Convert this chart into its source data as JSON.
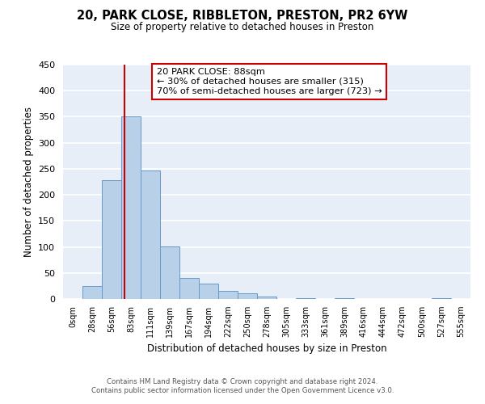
{
  "title": "20, PARK CLOSE, RIBBLETON, PRESTON, PR2 6YW",
  "subtitle": "Size of property relative to detached houses in Preston",
  "xlabel": "Distribution of detached houses by size in Preston",
  "ylabel": "Number of detached properties",
  "bar_color": "#b8d0e8",
  "bar_edge_color": "#6699cc",
  "background_color": "#e8eef7",
  "grid_color": "white",
  "bin_labels": [
    "0sqm",
    "28sqm",
    "56sqm",
    "83sqm",
    "111sqm",
    "139sqm",
    "167sqm",
    "194sqm",
    "222sqm",
    "250sqm",
    "278sqm",
    "305sqm",
    "333sqm",
    "361sqm",
    "389sqm",
    "416sqm",
    "444sqm",
    "472sqm",
    "500sqm",
    "527sqm",
    "555sqm"
  ],
  "bar_heights": [
    0,
    25,
    228,
    350,
    246,
    101,
    40,
    30,
    16,
    11,
    5,
    0,
    2,
    0,
    2,
    0,
    0,
    0,
    0,
    2,
    0
  ],
  "ylim": [
    0,
    450
  ],
  "yticks": [
    0,
    50,
    100,
    150,
    200,
    250,
    300,
    350,
    400,
    450
  ],
  "property_line_bin_index": 3.18,
  "annotation_text": "20 PARK CLOSE: 88sqm\n← 30% of detached houses are smaller (315)\n70% of semi-detached houses are larger (723) →",
  "annotation_box_color": "white",
  "annotation_box_edge_color": "#cc0000",
  "footer_line1": "Contains HM Land Registry data © Crown copyright and database right 2024.",
  "footer_line2": "Contains public sector information licensed under the Open Government Licence v3.0.",
  "red_line_color": "#cc0000",
  "figsize": [
    6.0,
    5.0
  ],
  "dpi": 100
}
